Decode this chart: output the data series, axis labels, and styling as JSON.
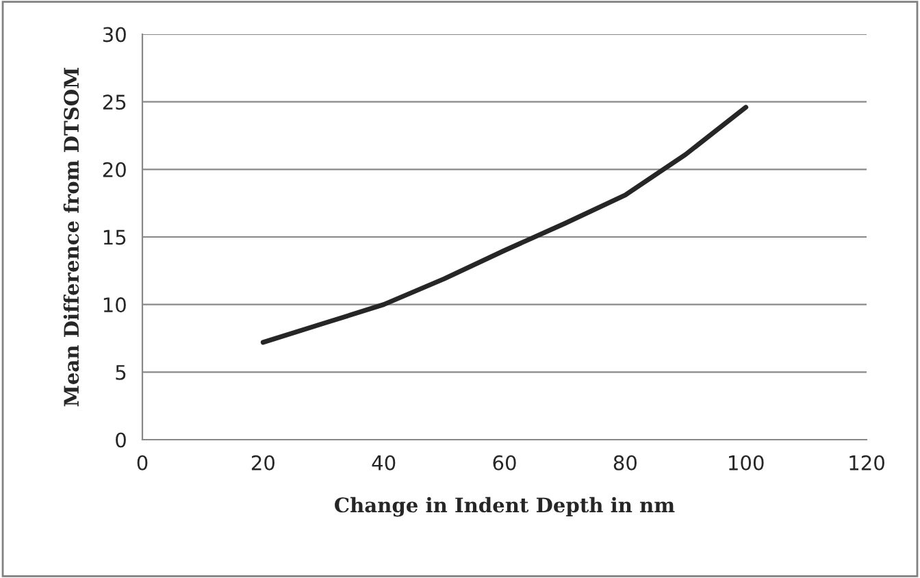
{
  "chart_data": {
    "type": "line",
    "xlabel": "Change in Indent Depth in nm",
    "ylabel": "Mean Difference from DTSOM",
    "x": [
      20,
      30,
      40,
      50,
      60,
      70,
      80,
      90,
      100
    ],
    "series": [
      {
        "color": "#262626",
        "values": [
          7.2,
          8.6,
          10.0,
          11.9,
          14.0,
          16.0,
          18.1,
          21.1,
          24.6
        ]
      }
    ],
    "xlim": [
      0,
      120
    ],
    "xticks": [
      0,
      20,
      40,
      60,
      80,
      100,
      120
    ],
    "ylim": [
      0,
      30
    ],
    "yticks": [
      0,
      5,
      10,
      15,
      20,
      25,
      30
    ],
    "grid": "y",
    "marker": "none",
    "line_style": "solid"
  }
}
